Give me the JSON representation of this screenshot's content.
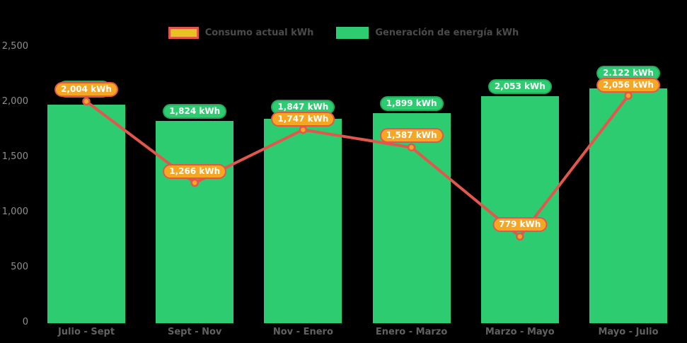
{
  "chart_data": {
    "type": "bar+line",
    "title": "",
    "categories": [
      "Julio - Sept",
      "Sept - Nov",
      "Nov - Enero",
      "Enero - Marzo",
      "Marzo - Mayo",
      "Mayo - Julio"
    ],
    "series": [
      {
        "name": "Generación de energía kWh",
        "type": "bar",
        "color": "#2ecc71",
        "label_border": "#25a85c",
        "values": [
          1975,
          1824,
          1847,
          1899,
          2053,
          2122
        ],
        "labels": [
          "",
          "1,824 kWh",
          "1,847 kWh",
          "1,899 kWh",
          "2,053 kWh",
          "2.122 kWh"
        ]
      },
      {
        "name": "Consumo actual kWh",
        "type": "line",
        "color": "#e2574b",
        "point_color": "#f5a623",
        "label_fill": "#f5a623",
        "label_border": "#e2574b",
        "values": [
          2004,
          1266,
          1747,
          1587,
          779,
          2056
        ],
        "labels": [
          "2,004 kWh",
          "1,266 kWh",
          "1,747 kWh",
          "1,587 kWh",
          "779 kWh",
          "2,056 kWh"
        ]
      }
    ],
    "ylim": [
      0,
      2500
    ],
    "ytick_values": [
      0,
      500,
      1000,
      1500,
      2000,
      2500
    ],
    "ytick_labels": [
      "0",
      "500",
      "1,000",
      "1,500",
      "2,000",
      "2,500"
    ],
    "grid": false,
    "legend_position": "top"
  },
  "legend": {
    "items": [
      {
        "label": "Consumo actual kWh",
        "swatch_fill": "#eac122",
        "swatch_border": "#e2574b"
      },
      {
        "label": "Generación de energía kWh",
        "swatch_fill": "#2ecc71",
        "swatch_border": "#2ecc71"
      }
    ]
  },
  "colors": {
    "background": "#000000",
    "bar_green": "#2ecc71",
    "line_red": "#e2574b",
    "dot_orange": "#f5a623",
    "axis_text": "#8f8f8f",
    "category_text": "#616161",
    "legend_text": "#4b4b4b"
  }
}
